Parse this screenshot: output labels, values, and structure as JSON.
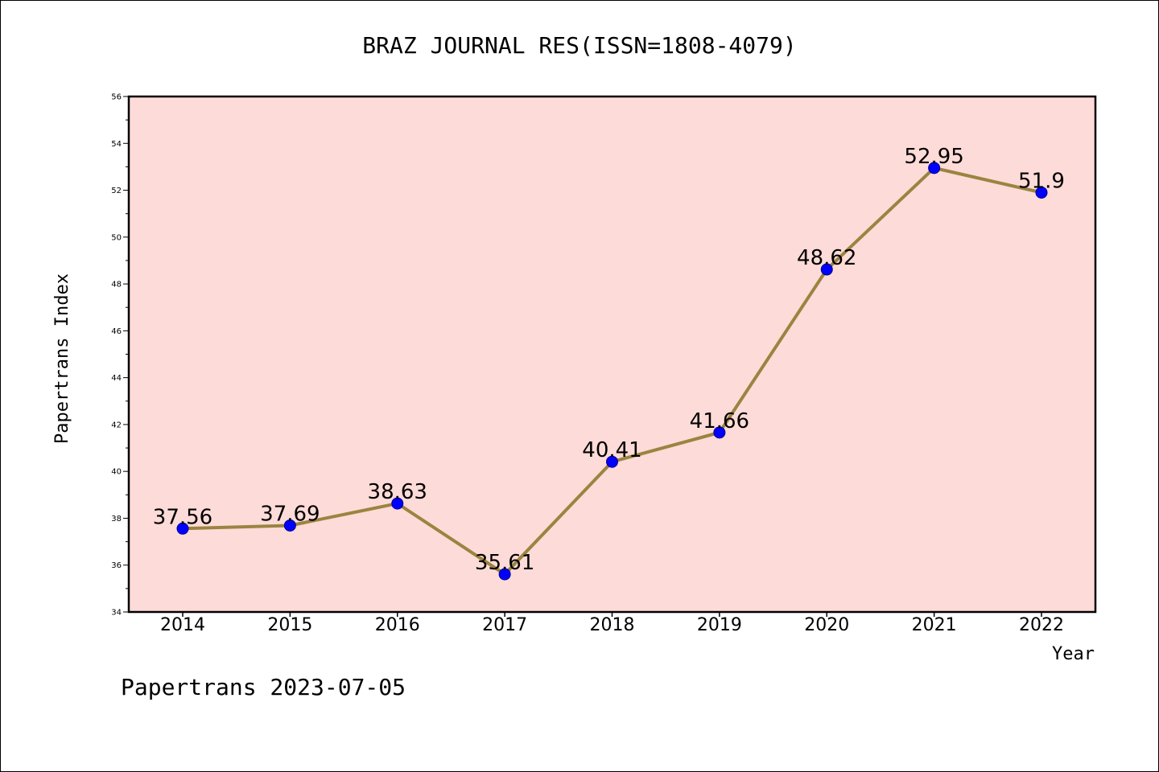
{
  "chart_data": {
    "type": "line",
    "title": "BRAZ JOURNAL RES(ISSN=1808-4079)",
    "xlabel": "Year",
    "ylabel": "Papertrans Index",
    "categories": [
      "2014",
      "2015",
      "2016",
      "2017",
      "2018",
      "2019",
      "2020",
      "2021",
      "2022"
    ],
    "values": [
      37.56,
      37.69,
      38.63,
      35.61,
      40.41,
      41.66,
      48.62,
      52.95,
      51.9
    ],
    "data_labels": [
      "37.56",
      "37.69",
      "38.63",
      "35.61",
      "40.41",
      "41.66",
      "48.62",
      "52.95",
      "51.9"
    ],
    "ylim": [
      34,
      56
    ],
    "yticks": [
      "34",
      "36",
      "38",
      "40",
      "42",
      "44",
      "46",
      "48",
      "50",
      "52",
      "54",
      "56"
    ],
    "grid": false,
    "colors": {
      "plot_background": "#fddbd8",
      "line": "#9a8440",
      "marker": "#0000ff"
    }
  },
  "footer": "Papertrans 2023-07-05"
}
